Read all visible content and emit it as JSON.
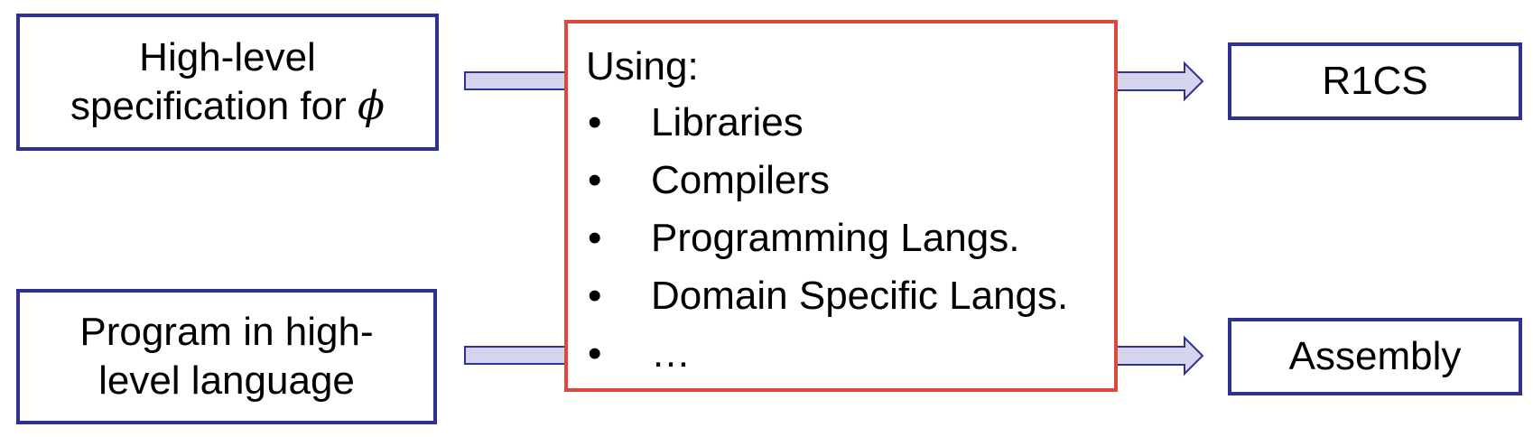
{
  "inputs": {
    "spec": {
      "line1": "High-level",
      "line2_text": "specification for ",
      "line2_symbol": "ϕ"
    },
    "program": {
      "line1": "Program in high-",
      "line2": "level language"
    }
  },
  "center": {
    "title": "Using:",
    "bullet": "•",
    "items": [
      "Libraries",
      "Compilers",
      "Programming Langs.",
      "Domain Specific Langs.",
      "…"
    ]
  },
  "outputs": {
    "r1cs": "R1CS",
    "assembly": "Assembly"
  },
  "colors": {
    "input_border": "#2e3092",
    "center_border": "#d94a3a",
    "arrow_fill": "#d4d4ec",
    "arrow_stroke": "#2e3092"
  }
}
